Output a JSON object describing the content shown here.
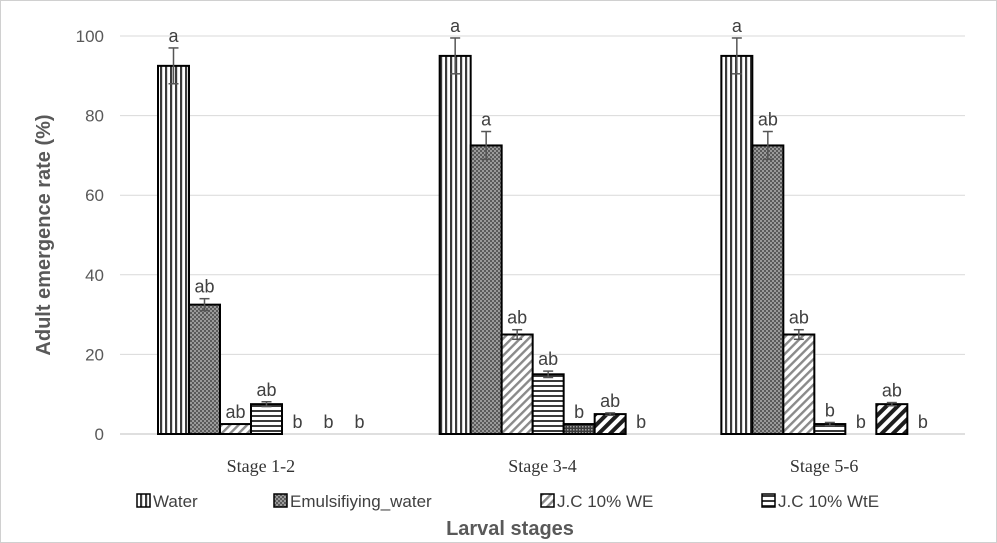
{
  "chart_data": {
    "type": "bar",
    "title": "",
    "xlabel": "Larval stages",
    "ylabel": "Adult emergence rate (%)",
    "ylim": [
      0,
      100
    ],
    "yticks": [
      0,
      20,
      40,
      60,
      80,
      100
    ],
    "grid": true,
    "legend_position": "bottom",
    "categories": [
      "Stage 1-2",
      "Stage 3-4",
      "Stage 5-6"
    ],
    "series": [
      {
        "name": "Water",
        "pattern": "vertical",
        "values": [
          92.5,
          95,
          95
        ],
        "errors": [
          4.5,
          4.5,
          4.5
        ],
        "labels": [
          "a",
          "a",
          "a"
        ]
      },
      {
        "name": "Emulsifiying_water",
        "pattern": "checker",
        "values": [
          32.5,
          72.5,
          72.5
        ],
        "errors": [
          1.5,
          3.5,
          3.5
        ],
        "labels": [
          "ab",
          "a",
          "ab"
        ]
      },
      {
        "name": "J.C 10% WE",
        "pattern": "diagonal",
        "values": [
          2.5,
          25,
          25
        ],
        "errors": [
          0,
          1.2,
          1.2
        ],
        "labels": [
          "ab",
          "ab",
          "ab"
        ]
      },
      {
        "name": "J.C 10% WtE",
        "pattern": "horizontal",
        "values": [
          7.5,
          15,
          2.5
        ],
        "errors": [
          0.6,
          0.8,
          0.4
        ],
        "labels": [
          "ab",
          "ab",
          "b"
        ]
      },
      {
        "name": "",
        "pattern": "dense",
        "values": [
          0,
          2.5,
          0
        ],
        "errors": [
          0,
          0,
          0
        ],
        "labels": [
          "b",
          "b",
          "b"
        ]
      },
      {
        "name": "",
        "pattern": "bold-diagonal",
        "values": [
          0,
          5,
          7.5
        ],
        "errors": [
          0,
          0.3,
          0.4
        ],
        "labels": [
          "b",
          "ab",
          "ab"
        ]
      },
      {
        "name": "",
        "pattern": "none",
        "values": [
          0,
          0,
          0
        ],
        "errors": [
          0,
          0,
          0
        ],
        "labels": [
          "b",
          "b",
          "b"
        ]
      }
    ]
  }
}
